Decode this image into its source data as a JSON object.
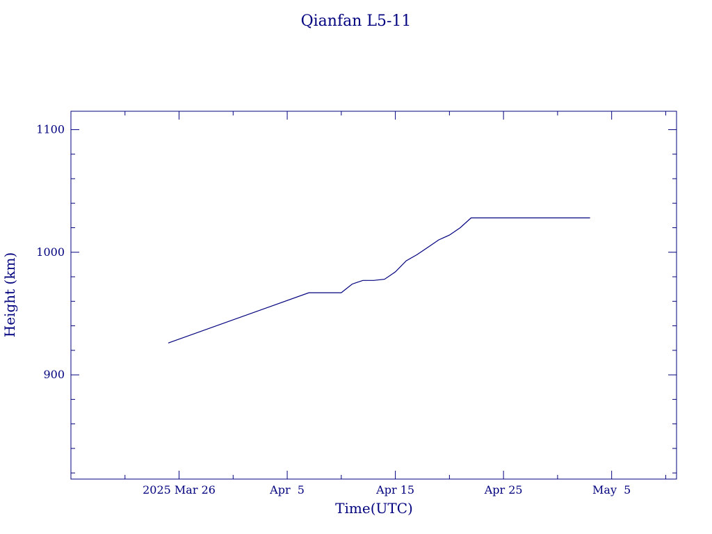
{
  "chart_data": {
    "type": "line",
    "title": "Qianfan L5-11",
    "xlabel": "Time(UTC)",
    "ylabel": "Height (km)",
    "x_tick_labels": [
      "2025 Mar 26",
      "Apr  5",
      "Apr 15",
      "Apr 25",
      "May  5"
    ],
    "y_tick_labels": [
      "900",
      "1000",
      "1100"
    ],
    "xlim": [
      "2025-03-16",
      "2025-05-11"
    ],
    "ylim": [
      815,
      1115
    ],
    "grid": false,
    "series": [
      {
        "color": "#00007f",
        "points": [
          [
            "2025-03-25",
            926
          ],
          [
            "2025-04-07",
            967
          ],
          [
            "2025-04-10",
            967
          ],
          [
            "2025-04-11",
            974
          ],
          [
            "2025-04-12",
            977
          ],
          [
            "2025-04-13",
            977
          ],
          [
            "2025-04-14",
            978
          ],
          [
            "2025-04-15",
            984
          ],
          [
            "2025-04-16",
            993
          ],
          [
            "2025-04-17",
            998
          ],
          [
            "2025-04-18",
            1004
          ],
          [
            "2025-04-19",
            1010
          ],
          [
            "2025-04-20",
            1014
          ],
          [
            "2025-04-21",
            1020
          ],
          [
            "2025-04-22",
            1028
          ],
          [
            "2025-05-03",
            1028
          ]
        ]
      }
    ]
  }
}
